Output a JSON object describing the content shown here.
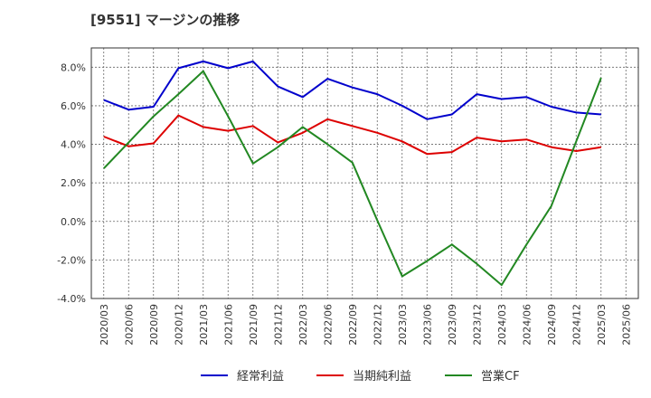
{
  "chart_data": {
    "type": "line",
    "title": "[9551]  マージンの推移",
    "xlabel": "",
    "ylabel": "",
    "categories": [
      "2020/03",
      "2020/06",
      "2020/09",
      "2020/12",
      "2021/03",
      "2021/06",
      "2021/09",
      "2021/12",
      "2022/03",
      "2022/06",
      "2022/09",
      "2022/12",
      "2023/03",
      "2023/06",
      "2023/09",
      "2023/12",
      "2024/03",
      "2024/06",
      "2024/09",
      "2024/12",
      "2025/03",
      "2025/06"
    ],
    "yticks": [
      "-4.0%",
      "-2.0%",
      "0.0%",
      "2.0%",
      "4.0%",
      "6.0%",
      "8.0%"
    ],
    "ylim": [
      -4.0,
      9.0
    ],
    "grid": true,
    "legend_position": "bottom",
    "series": [
      {
        "name": "経常利益",
        "color": "#0000cc",
        "values": [
          6.3,
          5.8,
          5.95,
          7.95,
          8.3,
          7.95,
          8.3,
          7.0,
          6.45,
          7.4,
          6.95,
          6.6,
          6.0,
          5.3,
          5.55,
          6.6,
          6.35,
          6.45,
          5.95,
          5.65,
          5.55,
          null
        ]
      },
      {
        "name": "当期純利益",
        "color": "#dd0000",
        "values": [
          4.4,
          3.9,
          4.05,
          5.5,
          4.9,
          4.7,
          4.95,
          4.1,
          4.6,
          5.3,
          4.95,
          4.6,
          4.15,
          3.5,
          3.6,
          4.35,
          4.15,
          4.25,
          3.85,
          3.65,
          3.85,
          null
        ]
      },
      {
        "name": "営業CF",
        "color": "#228822",
        "values": [
          2.75,
          4.1,
          5.45,
          6.6,
          7.8,
          5.45,
          3.0,
          3.85,
          4.9,
          4.0,
          3.05,
          0.05,
          -2.85,
          -2.05,
          -1.2,
          -2.2,
          -3.3,
          -1.2,
          0.8,
          4.15,
          7.45,
          null
        ]
      }
    ]
  }
}
